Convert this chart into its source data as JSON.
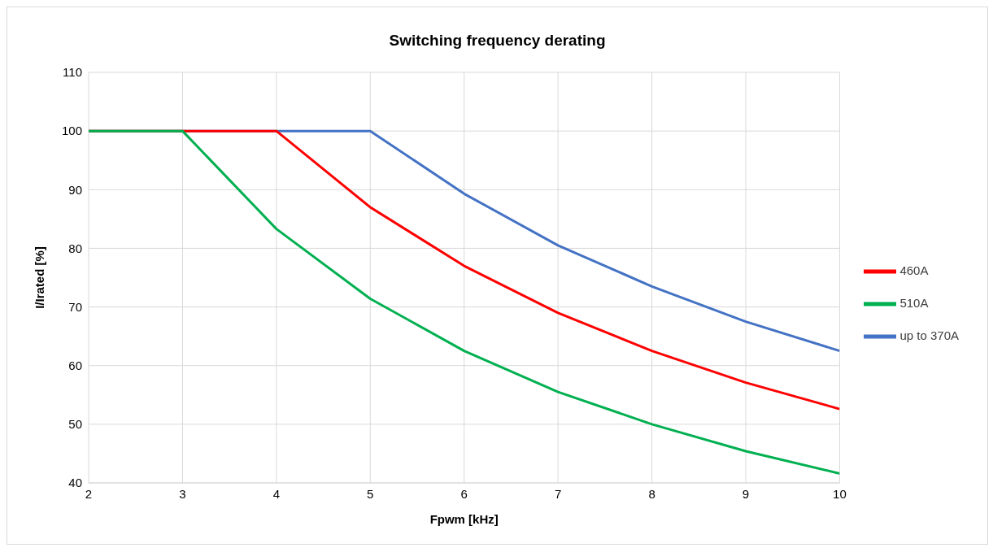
{
  "chart_data": {
    "type": "line",
    "title": "Switching frequency derating",
    "xlabel": "Fpwm [kHz]",
    "ylabel": "I/Irated [%]",
    "x": [
      2,
      3,
      4,
      5,
      6,
      7,
      8,
      9,
      10
    ],
    "series": [
      {
        "name": "up to 370A",
        "color": "#4472c4",
        "values": [
          100,
          100,
          100,
          100,
          89.3,
          80.5,
          73.5,
          67.5,
          62.5
        ]
      },
      {
        "name": "460A",
        "color": "#ff0000",
        "values": [
          100,
          100,
          100,
          87,
          77,
          69,
          62.5,
          57.1,
          52.6
        ]
      },
      {
        "name": "510A",
        "color": "#00b050",
        "values": [
          100,
          100,
          83.3,
          71.4,
          62.5,
          55.5,
          50,
          45.4,
          41.6
        ]
      }
    ],
    "xlim": [
      2,
      10
    ],
    "xticks": [
      2,
      3,
      4,
      5,
      6,
      7,
      8,
      9,
      10
    ],
    "ylim": [
      40,
      110
    ],
    "yticks": [
      40,
      50,
      60,
      70,
      80,
      90,
      100,
      110
    ],
    "grid": true,
    "legend": "right",
    "marker": "none",
    "line_style": "solid"
  }
}
